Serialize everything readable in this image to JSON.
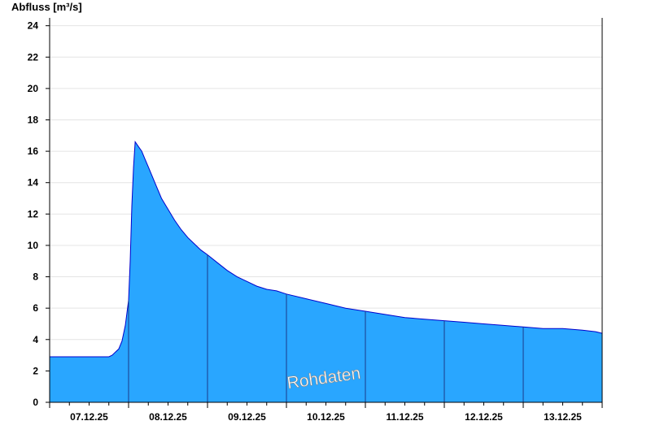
{
  "chart_data": {
    "type": "area",
    "title": "",
    "ylabel": "Abfluss [m³/s]",
    "xlabel": "",
    "ylim": [
      0,
      24.5
    ],
    "yticks": [
      0,
      2,
      4,
      6,
      8,
      10,
      12,
      14,
      16,
      18,
      20,
      22,
      24
    ],
    "xlim": [
      "07.12.25 00:00",
      "14.12.25 00:00"
    ],
    "x_tick_labels": [
      "07.12.25",
      "08.12.25",
      "09.12.25",
      "10.12.25",
      "11.12.25",
      "12.12.25",
      "13.12.25"
    ],
    "grid": "horizontal",
    "watermark": "Rohdaten",
    "fill_color": "#29a6ff",
    "line_color": "#0000cc",
    "series": [
      {
        "x": [
          "07.12.25 00:00",
          "07.12.25 18:00",
          "07.12.25 19:00",
          "07.12.25 20:00",
          "07.12.25 21:00",
          "07.12.25 22:00",
          "07.12.25 23:00",
          "08.12.25 00:00",
          "08.12.25 00:30",
          "08.12.25 01:00",
          "08.12.25 01:30",
          "08.12.25 02:00",
          "08.12.25 03:00",
          "08.12.25 04:00",
          "08.12.25 05:00",
          "08.12.25 06:00",
          "08.12.25 08:00",
          "08.12.25 10:00",
          "08.12.25 12:00",
          "08.12.25 14:00",
          "08.12.25 16:00",
          "08.12.25 18:00",
          "08.12.25 20:00",
          "08.12.25 22:00",
          "09.12.25 00:00",
          "09.12.25 03:00",
          "09.12.25 06:00",
          "09.12.25 09:00",
          "09.12.25 12:00",
          "09.12.25 15:00",
          "09.12.25 18:00",
          "09.12.25 21:00",
          "10.12.25 00:00",
          "10.12.25 06:00",
          "10.12.25 12:00",
          "10.12.25 18:00",
          "11.12.25 00:00",
          "11.12.25 06:00",
          "11.12.25 12:00",
          "11.12.25 18:00",
          "12.12.25 00:00",
          "12.12.25 06:00",
          "12.12.25 12:00",
          "12.12.25 18:00",
          "13.12.25 00:00",
          "13.12.25 06:00",
          "13.12.25 12:00",
          "13.12.25 18:00",
          "13.12.25 22:00",
          "14.12.25 00:00"
        ],
        "y": [
          2.9,
          2.9,
          3.0,
          3.2,
          3.4,
          3.9,
          4.9,
          6.5,
          9.0,
          12.5,
          15.0,
          16.6,
          16.3,
          16.0,
          15.5,
          15.0,
          14.0,
          13.0,
          12.3,
          11.6,
          11.0,
          10.5,
          10.1,
          9.7,
          9.4,
          8.9,
          8.4,
          8.0,
          7.7,
          7.4,
          7.2,
          7.1,
          6.9,
          6.6,
          6.3,
          6.0,
          5.8,
          5.6,
          5.4,
          5.3,
          5.2,
          5.1,
          5.0,
          4.9,
          4.8,
          4.7,
          4.7,
          4.6,
          4.5,
          4.4
        ]
      }
    ]
  }
}
